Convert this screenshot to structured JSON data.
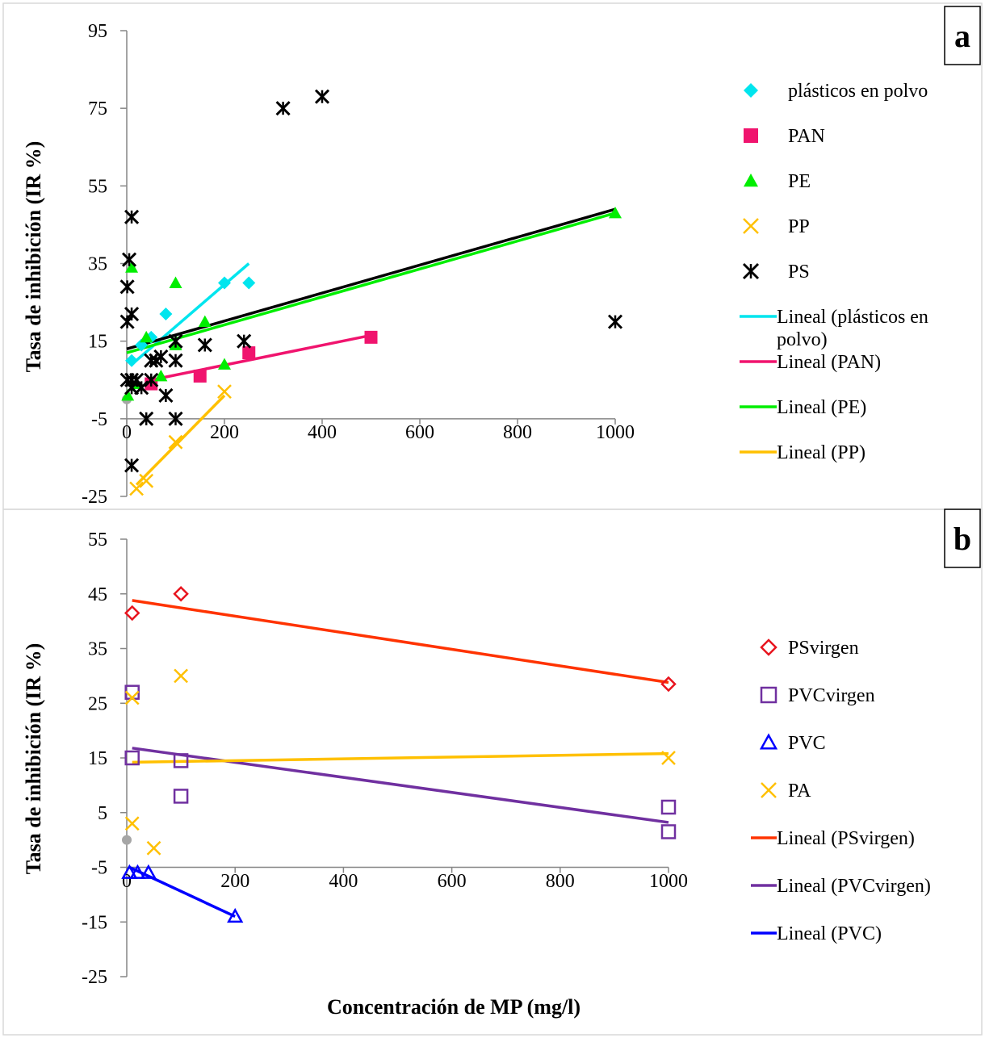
{
  "chart_data": [
    {
      "panel": "a",
      "type": "scatter",
      "ylabel": "Tasa de inhibición (IR %)",
      "xlabel": "",
      "xlim": [
        0,
        1000
      ],
      "ylim": [
        -25,
        95
      ],
      "xticks": [
        "0",
        "200",
        "400",
        "600",
        "800",
        "1000"
      ],
      "xtick_values": [
        0,
        200,
        400,
        600,
        800,
        1000
      ],
      "yticks": [
        "-25",
        "-5",
        "15",
        "35",
        "55",
        "75",
        "95"
      ],
      "ytick_values": [
        -25,
        -5,
        15,
        35,
        55,
        75,
        95
      ],
      "legend_position": "right",
      "series": [
        {
          "name": "plásticos en polvo",
          "marker": "diamond",
          "color": "#00E5EE",
          "points": [
            [
              10,
              10
            ],
            [
              30,
              14
            ],
            [
              50,
              16
            ],
            [
              80,
              22
            ],
            [
              200,
              30
            ],
            [
              250,
              30
            ]
          ]
        },
        {
          "name": "PAN",
          "marker": "square",
          "color": "#F0146E",
          "points": [
            [
              50,
              4
            ],
            [
              150,
              6
            ],
            [
              250,
              12
            ],
            [
              500,
              16
            ]
          ]
        },
        {
          "name": "PE",
          "marker": "triangle",
          "color": "#00EE00",
          "points": [
            [
              2,
              1
            ],
            [
              10,
              34
            ],
            [
              20,
              4
            ],
            [
              40,
              16
            ],
            [
              70,
              6
            ],
            [
              100,
              30
            ],
            [
              100,
              14
            ],
            [
              160,
              20
            ],
            [
              200,
              9
            ],
            [
              1000,
              48
            ]
          ]
        },
        {
          "name": "PP",
          "marker": "x",
          "color": "#FFC000",
          "points": [
            [
              20,
              -23
            ],
            [
              40,
              -21
            ],
            [
              100,
              -11
            ],
            [
              200,
              2
            ]
          ]
        },
        {
          "name": "PS",
          "marker": "star",
          "color": "#000000",
          "points": [
            [
              1,
              29
            ],
            [
              1,
              20
            ],
            [
              1,
              5
            ],
            [
              5,
              36
            ],
            [
              10,
              47
            ],
            [
              10,
              22
            ],
            [
              10,
              5
            ],
            [
              10,
              3
            ],
            [
              10,
              -17
            ],
            [
              20,
              5
            ],
            [
              30,
              3
            ],
            [
              40,
              -5
            ],
            [
              50,
              10
            ],
            [
              50,
              5
            ],
            [
              60,
              10
            ],
            [
              70,
              11
            ],
            [
              80,
              1
            ],
            [
              100,
              10
            ],
            [
              100,
              15
            ],
            [
              100,
              -5
            ],
            [
              160,
              14
            ],
            [
              240,
              15
            ],
            [
              320,
              75
            ],
            [
              400,
              78
            ],
            [
              1000,
              20
            ]
          ]
        }
      ],
      "trendlines": [
        {
          "name": "Lineal (plásticos en polvo)",
          "color": "#00E5EE",
          "x": [
            10,
            250
          ],
          "y": [
            9,
            35
          ]
        },
        {
          "name": "Lineal (PAN)",
          "color": "#F0146E",
          "x": [
            50,
            500
          ],
          "y": [
            5,
            16.5
          ]
        },
        {
          "name": "Lineal (PE)",
          "color": "#00EE00",
          "x": [
            0,
            1000
          ],
          "y": [
            12,
            48
          ]
        },
        {
          "name": "Lineal (PP)",
          "color": "#FFC000",
          "x": [
            20,
            200
          ],
          "y": [
            -22,
            1
          ]
        },
        {
          "name": "",
          "color": "#000000",
          "x": [
            0,
            1000
          ],
          "y": [
            13,
            49
          ]
        }
      ],
      "origin_marker": {
        "x": 0,
        "y": 0,
        "color": "#A6A6A6"
      }
    },
    {
      "panel": "b",
      "type": "scatter",
      "ylabel": "Tasa de inhibición (IR %)",
      "xlabel": "Concentración de MP (mg/l)",
      "xlim": [
        0,
        1000
      ],
      "ylim": [
        -25,
        55
      ],
      "xticks": [
        "0",
        "200",
        "400",
        "600",
        "800",
        "1000"
      ],
      "xtick_values": [
        0,
        200,
        400,
        600,
        800,
        1000
      ],
      "yticks": [
        "-25",
        "-15",
        "-5",
        "5",
        "15",
        "25",
        "35",
        "45",
        "55"
      ],
      "ytick_values": [
        -25,
        -15,
        -5,
        5,
        15,
        25,
        35,
        45,
        55
      ],
      "legend_position": "right",
      "series": [
        {
          "name": "PSvirgen",
          "marker": "diamond-open",
          "color": "#E8141E",
          "points": [
            [
              10,
              41.5
            ],
            [
              100,
              45
            ],
            [
              1000,
              28.5
            ]
          ]
        },
        {
          "name": "PVCvirgen",
          "marker": "square-open",
          "color": "#7030A0",
          "points": [
            [
              10,
              27
            ],
            [
              10,
              15
            ],
            [
              100,
              14.5
            ],
            [
              100,
              8
            ],
            [
              1000,
              6
            ],
            [
              1000,
              1.5
            ]
          ]
        },
        {
          "name": "PVC",
          "marker": "triangle-open",
          "color": "#0000FF",
          "points": [
            [
              5,
              -6
            ],
            [
              20,
              -6
            ],
            [
              40,
              -6
            ],
            [
              200,
              -14
            ]
          ]
        },
        {
          "name": "PA",
          "marker": "x",
          "color": "#FFC000",
          "points": [
            [
              10,
              26
            ],
            [
              10,
              3
            ],
            [
              50,
              -1.5
            ],
            [
              100,
              30
            ],
            [
              1000,
              15
            ]
          ]
        }
      ],
      "trendlines": [
        {
          "name": "Lineal (PSvirgen)",
          "color": "#FF3300",
          "x": [
            10,
            1000
          ],
          "y": [
            43.8,
            28.8
          ]
        },
        {
          "name": "Lineal (PVCvirgen)",
          "color": "#7030A0",
          "x": [
            10,
            1000
          ],
          "y": [
            16.8,
            3.2
          ]
        },
        {
          "name": "Lineal (PVC)",
          "color": "#0000FF",
          "x": [
            5,
            200
          ],
          "y": [
            -5,
            -14
          ]
        },
        {
          "name": "",
          "color": "#FFC000",
          "x": [
            10,
            1000
          ],
          "y": [
            14.2,
            15.8
          ]
        }
      ],
      "origin_marker": {
        "x": 0,
        "y": 0,
        "color": "#A6A6A6"
      }
    }
  ]
}
